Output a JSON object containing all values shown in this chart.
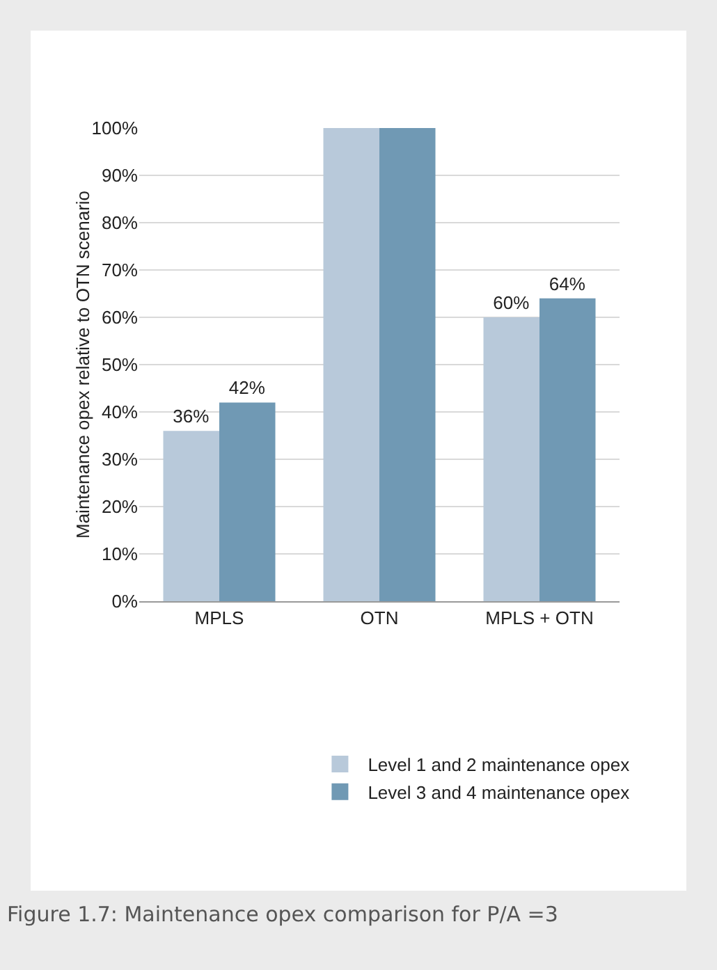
{
  "chart_data": {
    "type": "bar",
    "title": "Figure 1.7: Maintenance opex comparison for P/A =3",
    "ylabel": "Maintenance opex relative to OTN scenario",
    "categories": [
      "MPLS",
      "OTN",
      "MPLS + OTN"
    ],
    "series": [
      {
        "name": "Level 1 and 2 maintenance opex",
        "color": "#b8c9da",
        "values": [
          36,
          100,
          60
        ],
        "value_labels": [
          "36%",
          null,
          "60%"
        ]
      },
      {
        "name": "Level 3 and 4 maintenance opex",
        "color": "#7099b4",
        "values": [
          42,
          100,
          64
        ],
        "value_labels": [
          "42%",
          null,
          "64%"
        ]
      }
    ],
    "ylim": [
      0,
      100
    ],
    "yticks": [
      {
        "value": 0,
        "label": "0%"
      },
      {
        "value": 10,
        "label": "10%"
      },
      {
        "value": 20,
        "label": "20%"
      },
      {
        "value": 30,
        "label": "30%"
      },
      {
        "value": 40,
        "label": "40%"
      },
      {
        "value": 50,
        "label": "50%"
      },
      {
        "value": 60,
        "label": "60%"
      },
      {
        "value": 70,
        "label": "70%"
      },
      {
        "value": 80,
        "label": "80%"
      },
      {
        "value": 90,
        "label": "90%"
      },
      {
        "value": 100,
        "label": "100%"
      }
    ],
    "grid": "y",
    "legend": "bottom"
  }
}
